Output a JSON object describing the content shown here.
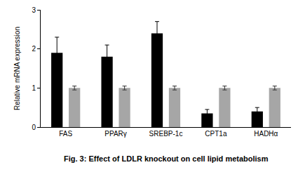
{
  "chart_data": {
    "type": "bar",
    "title": "Fig. 3: Effect of LDLR knockout on cell lipid metabolism",
    "y_label": "Relative mRNA expression",
    "categories": [
      "FAS",
      "PPARγ",
      "SREBP-1c",
      "CPT1a",
      "HADHα"
    ],
    "series": [
      {
        "color": "#000000",
        "values": [
          1.9,
          1.8,
          2.4,
          0.35,
          0.4
        ],
        "errors": [
          0.4,
          0.3,
          0.3,
          0.1,
          0.1
        ]
      },
      {
        "color": "#a6a6a6",
        "values": [
          1.0,
          1.0,
          1.0,
          1.0,
          1.0
        ],
        "errors": [
          0.05,
          0.05,
          0.05,
          0.05,
          0.05
        ]
      }
    ],
    "ylim": [
      0,
      3
    ],
    "yticks": [
      0,
      1,
      2,
      3
    ],
    "grid": false
  }
}
